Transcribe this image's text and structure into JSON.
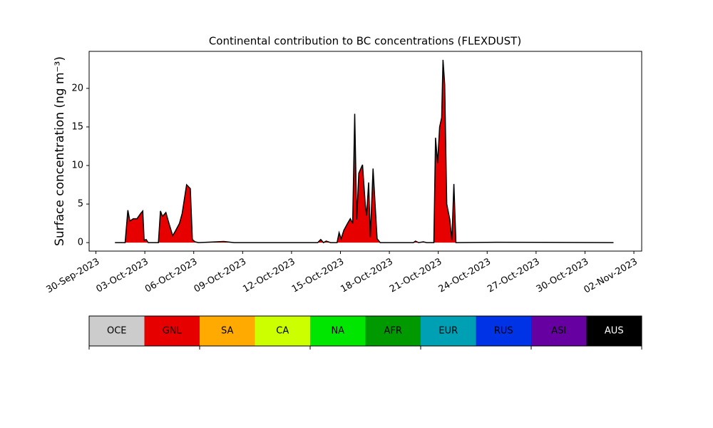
{
  "chart_data": {
    "type": "area",
    "title": "Continental contribution to BC concentrations (FLEXDUST)",
    "ylabel": "Surface concentration (ng m⁻³)",
    "x": [
      "2023-10-01T04:00",
      "2023-10-01T19:00",
      "2023-10-01T23:00",
      "2023-10-02T02:00",
      "2023-10-02T07:00",
      "2023-10-02T12:30",
      "2023-10-02T18:00",
      "2023-10-02T21:00",
      "2023-10-02T23:00",
      "2023-10-03T02:00",
      "2023-10-03T05:00",
      "2023-10-03T20:00",
      "2023-10-03T23:00",
      "2023-10-04T02:00",
      "2023-10-04T07:00",
      "2023-10-04T11:30",
      "2023-10-04T17:00",
      "2023-10-04T21:00",
      "2023-10-05T03:00",
      "2023-10-05T07:00",
      "2023-10-05T13:30",
      "2023-10-05T19:00",
      "2023-10-05T22:00",
      "2023-10-06T02:00",
      "2023-10-06T07:00",
      "2023-10-07T09:30",
      "2023-10-07T20:00",
      "2023-10-08T11:30",
      "2023-10-13T14:30",
      "2023-10-13T19:00",
      "2023-10-13T23:00",
      "2023-10-14T03:00",
      "2023-10-14T09:30",
      "2023-10-14T19:00",
      "2023-10-14T22:00",
      "2023-10-15T01:00",
      "2023-10-15T05:00",
      "2023-10-15T10:30",
      "2023-10-15T14:30",
      "2023-10-15T18:00",
      "2023-10-15T21:00",
      "2023-10-16T00:00",
      "2023-10-16T03:00",
      "2023-10-16T08:30",
      "2023-10-16T12:30",
      "2023-10-16T14:30",
      "2023-10-16T17:30",
      "2023-10-16T20:00",
      "2023-10-17T00:00",
      "2023-10-17T03:00",
      "2023-10-17T06:00",
      "2023-10-17T10:30",
      "2023-10-19T11:30",
      "2023-10-19T14:30",
      "2023-10-19T19:00",
      "2023-10-20T02:00",
      "2023-10-20T07:00",
      "2023-10-20T17:30",
      "2023-10-20T20:00",
      "2023-10-20T23:00",
      "2023-10-21T02:00",
      "2023-10-21T05:00",
      "2023-10-21T07:00",
      "2023-10-21T09:30",
      "2023-10-21T12:30",
      "2023-10-21T17:00",
      "2023-10-21T20:00",
      "2023-10-21T23:00",
      "2023-10-22T02:00",
      "2023-10-24T13:30",
      "2023-10-31T18:00"
    ],
    "values": [
      0,
      0,
      4.2,
      2.8,
      3.1,
      3.1,
      3.8,
      4.1,
      0.3,
      0.4,
      0,
      0,
      4.1,
      3.4,
      3.9,
      2.5,
      0.9,
      1.5,
      2.5,
      3.8,
      7.5,
      7.0,
      0.4,
      0.1,
      0,
      0.1,
      0.15,
      0,
      0,
      0.4,
      0,
      0.2,
      0,
      0,
      1.3,
      0.5,
      1.6,
      2.5,
      3.1,
      2.5,
      16.7,
      3.0,
      9.0,
      10.1,
      5.0,
      3.5,
      7.8,
      0.7,
      9.6,
      5.0,
      0.5,
      0,
      0,
      0.2,
      0,
      0.1,
      0,
      0,
      13.6,
      10.3,
      15.0,
      16.2,
      23.7,
      20.5,
      5.0,
      3.0,
      0.3,
      7.6,
      0,
      0.05,
      0
    ],
    "color": "#e60000",
    "edgecolor": "#000000",
    "xlim": [
      "2023-09-29T14:00",
      "2023-11-02T11:30"
    ],
    "xticks": [
      {
        "value": "2023-09-30T00:00",
        "label": "30-Sep-2023"
      },
      {
        "value": "2023-10-03T00:00",
        "label": "03-Oct-2023"
      },
      {
        "value": "2023-10-06T00:00",
        "label": "06-Oct-2023"
      },
      {
        "value": "2023-10-09T00:00",
        "label": "09-Oct-2023"
      },
      {
        "value": "2023-10-12T00:00",
        "label": "12-Oct-2023"
      },
      {
        "value": "2023-10-15T00:00",
        "label": "15-Oct-2023"
      },
      {
        "value": "2023-10-18T00:00",
        "label": "18-Oct-2023"
      },
      {
        "value": "2023-10-21T00:00",
        "label": "21-Oct-2023"
      },
      {
        "value": "2023-10-24T00:00",
        "label": "24-Oct-2023"
      },
      {
        "value": "2023-10-27T00:00",
        "label": "27-Oct-2023"
      },
      {
        "value": "2023-10-30T00:00",
        "label": "30-Oct-2023"
      },
      {
        "value": "2023-11-02T00:00",
        "label": "02-Nov-2023"
      }
    ],
    "ylim": [
      -1.1,
      24.8
    ],
    "yticks": [
      0,
      5,
      10,
      15,
      20
    ],
    "colorbar": {
      "categories": [
        "OCE",
        "GNL",
        "SA",
        "CA",
        "NA",
        "AFR",
        "EUR",
        "RUS",
        "ASI",
        "AUS"
      ],
      "colors": [
        "#cccccc",
        "#e60000",
        "#ffaa00",
        "#ccff00",
        "#00e600",
        "#009900",
        "#00a0b4",
        "#0033e6",
        "#6600a0",
        "#000000"
      ]
    }
  }
}
